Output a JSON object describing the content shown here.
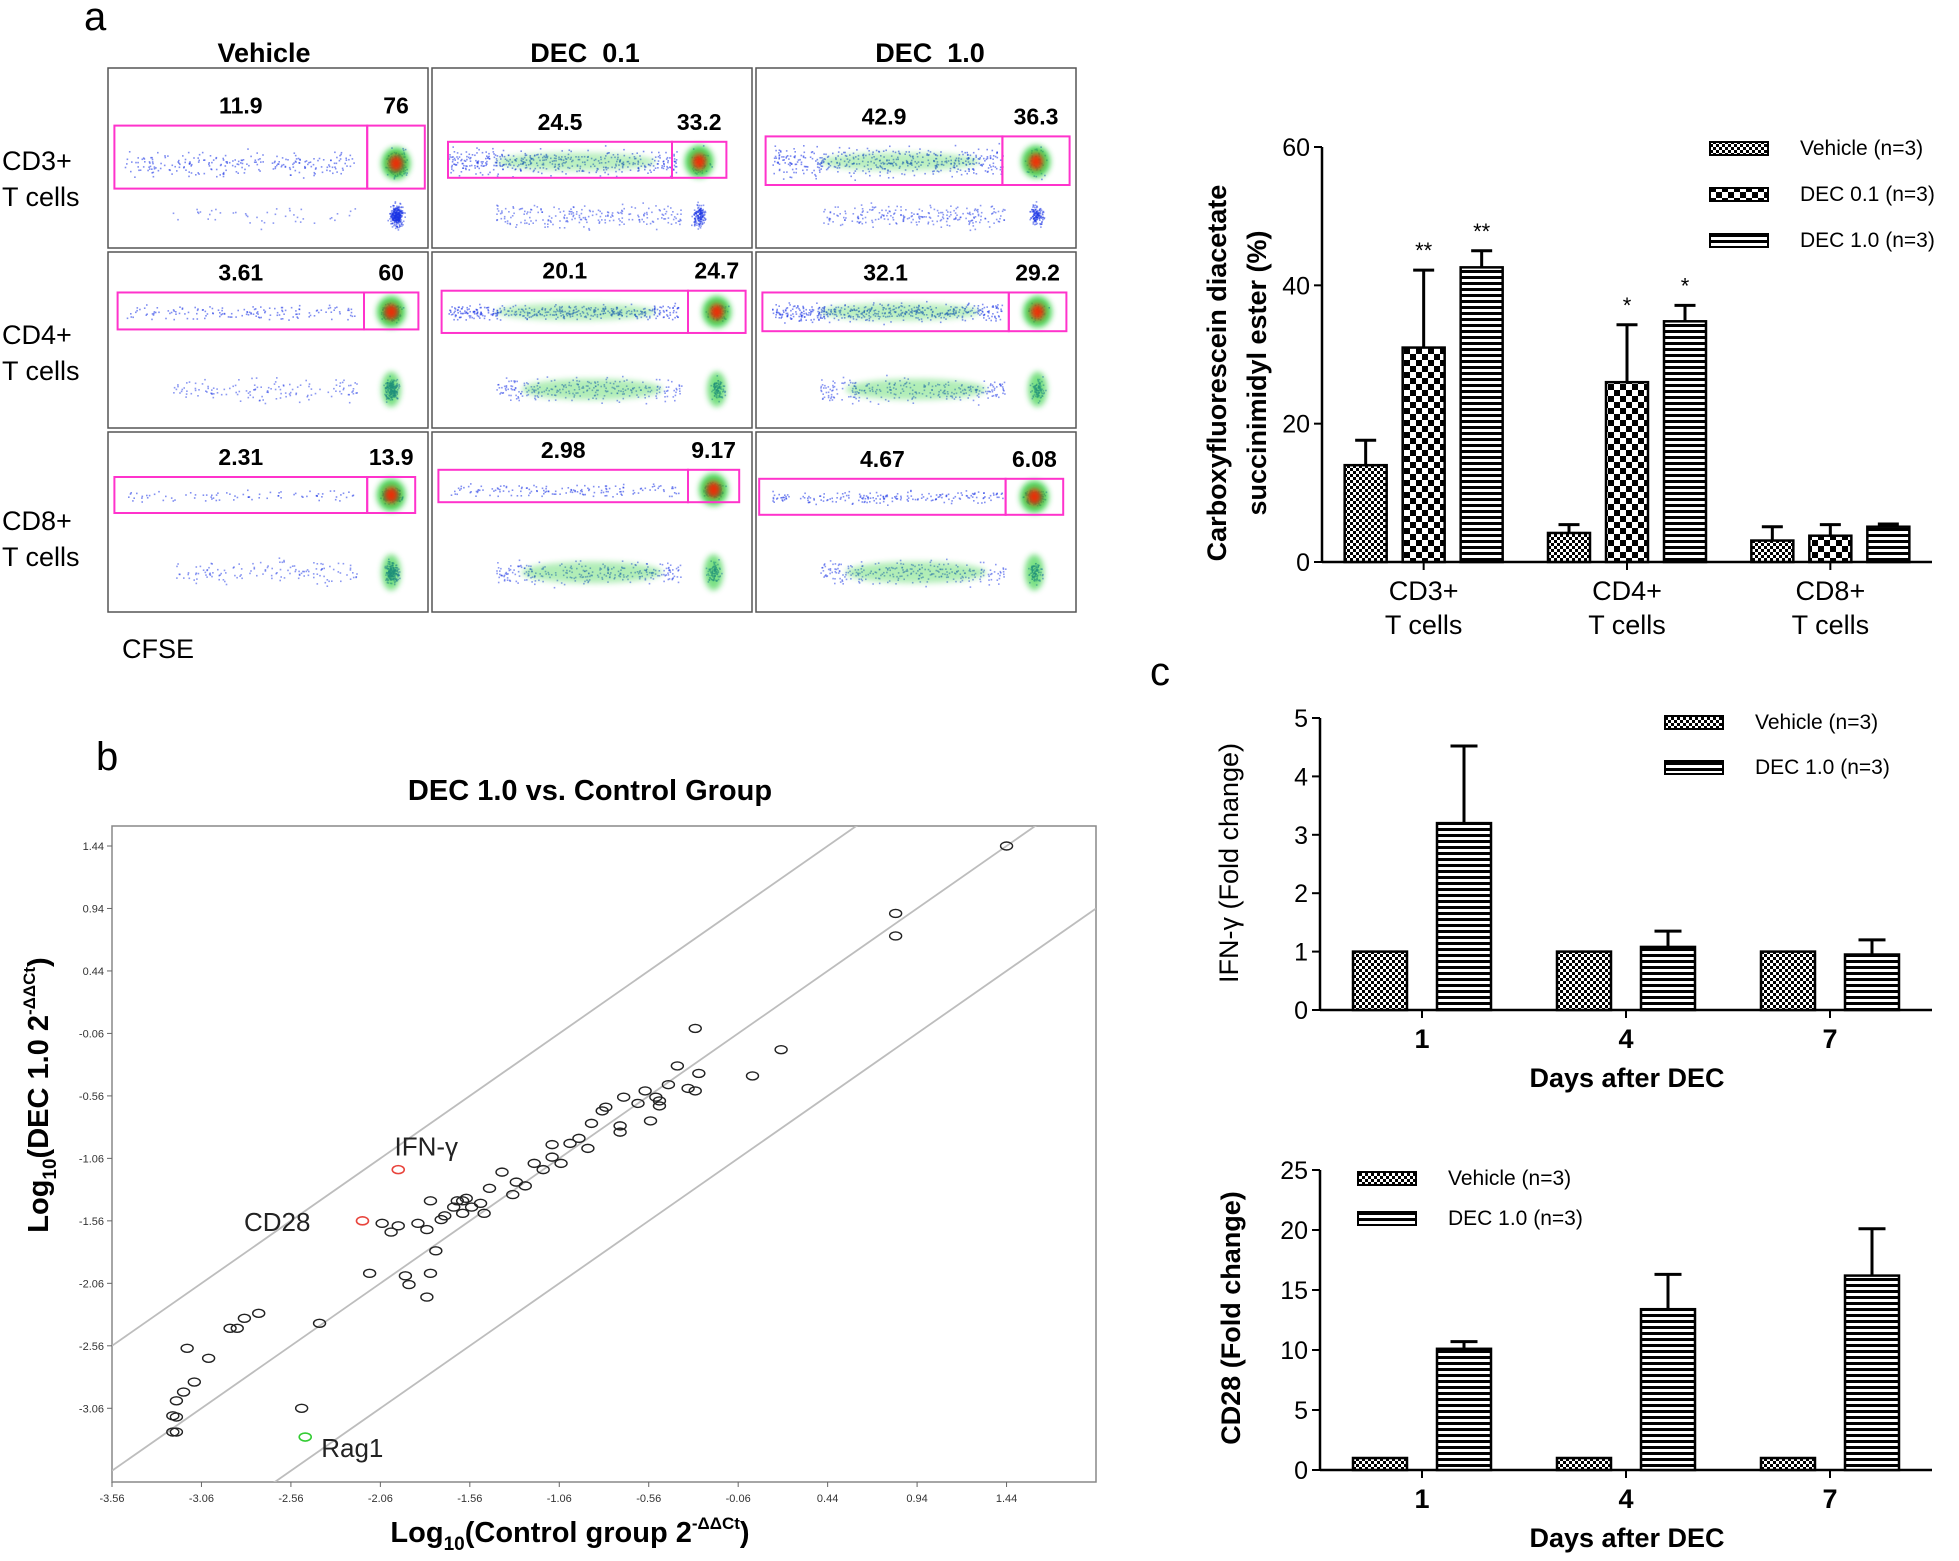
{
  "panel_labels": {
    "a": "a",
    "b": "b",
    "c": "c"
  },
  "flow": {
    "columns": [
      "Vehicle",
      "DEC  0.1",
      "DEC  1.0"
    ],
    "rows": [
      {
        "line1": "CD3+",
        "line2": "T cells"
      },
      {
        "line1": "CD4+",
        "line2": "T cells"
      },
      {
        "line1": "CD8+",
        "line2": "T cells"
      }
    ],
    "gate_values": [
      [
        [
          "11.9",
          "76"
        ],
        [
          "24.5",
          "33.2"
        ],
        [
          "42.9",
          "36.3"
        ]
      ],
      [
        [
          "3.61",
          "60"
        ],
        [
          "20.1",
          "24.7"
        ],
        [
          "32.1",
          "29.2"
        ]
      ],
      [
        [
          "2.31",
          "13.9"
        ],
        [
          "2.98",
          "9.17"
        ],
        [
          "4.67",
          "6.08"
        ]
      ]
    ],
    "x_label": "CFSE",
    "colors": {
      "gate": "#ff33cc",
      "dots": "#1a33e6",
      "hot": "#ff2200",
      "warm": "#22cc33"
    }
  },
  "chart_data": [
    {
      "id": "a-bar",
      "type": "bar",
      "ylabel_line1": "Carboxyfluorescein diacetate",
      "ylabel_line2": "succinimidyl ester (%)",
      "ylim": [
        0,
        60
      ],
      "yticks": [
        "0",
        "20",
        "40",
        "60"
      ],
      "categories": [
        {
          "line1": "CD3+",
          "line2": "T cells"
        },
        {
          "line1": "CD4+",
          "line2": "T cells"
        },
        {
          "line1": "CD8+",
          "line2": "T cells"
        }
      ],
      "series": [
        {
          "name": "Vehicle (n=3)",
          "values": [
            14,
            4.2,
            3.1
          ],
          "errors": [
            3.6,
            1.2,
            2.0
          ],
          "pattern": "checker-small"
        },
        {
          "name": "DEC  0.1 (n=3)",
          "values": [
            31,
            26,
            3.8
          ],
          "errors": [
            11.2,
            8.3,
            1.6
          ],
          "pattern": "checker-large"
        },
        {
          "name": "DEC  1.0 (n=3)",
          "values": [
            42.6,
            34.8,
            5.1
          ],
          "errors": [
            2.4,
            2.3,
            0.4
          ],
          "pattern": "stripes"
        }
      ],
      "significance": [
        [
          "",
          "**",
          "**"
        ],
        [
          "",
          "*",
          "*"
        ],
        [
          "",
          "",
          ""
        ]
      ]
    },
    {
      "id": "b-scatter",
      "type": "scatter",
      "title": "DEC 1.0 vs. Control Group",
      "xlabel_main": "Log",
      "xlabel_sub": "10",
      "xlabel_rest": "(Control group 2",
      "xlabel_sup": "-ΔΔCt",
      "xlabel_end": ")",
      "ylabel_main": "Log",
      "ylabel_sub": "10",
      "ylabel_rest": "(DEC 1.0 2",
      "ylabel_sup": "-ΔΔCt",
      "ylabel_end": ")",
      "xlim": [
        -3.56,
        1.94
      ],
      "ylim": [
        -3.65,
        1.6
      ],
      "xticks": [
        "-3.56",
        "-3.06",
        "-2.56",
        "-2.06",
        "-1.56",
        "-1.06",
        "-0.56",
        "-0.06",
        "0.44",
        "0.94",
        "1.44"
      ],
      "yticks": [
        "-3.06",
        "-2.56",
        "-2.06",
        "-1.56",
        "-1.06",
        "-0.56",
        "-0.06",
        "0.44",
        "0.94",
        "1.44"
      ],
      "diagonal_offsets": [
        1,
        0,
        -1
      ],
      "points": [
        [
          1.44,
          1.44
        ],
        [
          0.82,
          0.9
        ],
        [
          0.82,
          0.72
        ],
        [
          0.18,
          -0.19
        ],
        [
          0.02,
          -0.4
        ],
        [
          -0.3,
          -0.02
        ],
        [
          -0.28,
          -0.38
        ],
        [
          -0.3,
          -0.52
        ],
        [
          -0.34,
          -0.5
        ],
        [
          -0.4,
          -0.32
        ],
        [
          -0.45,
          -0.47
        ],
        [
          -0.5,
          -0.6
        ],
        [
          -0.5,
          -0.64
        ],
        [
          -0.52,
          -0.57
        ],
        [
          -0.58,
          -0.52
        ],
        [
          -0.55,
          -0.76
        ],
        [
          -0.62,
          -0.62
        ],
        [
          -0.7,
          -0.57
        ],
        [
          -0.72,
          -0.8
        ],
        [
          -0.72,
          -0.85
        ],
        [
          -0.8,
          -0.65
        ],
        [
          -0.82,
          -0.68
        ],
        [
          -0.88,
          -0.78
        ],
        [
          -0.95,
          -0.9
        ],
        [
          -0.9,
          -0.98
        ],
        [
          -1.0,
          -0.94
        ],
        [
          -1.1,
          -0.95
        ],
        [
          -1.05,
          -1.1
        ],
        [
          -1.1,
          -1.05
        ],
        [
          -1.15,
          -1.15
        ],
        [
          -1.2,
          -1.1
        ],
        [
          -1.25,
          -1.28
        ],
        [
          -1.3,
          -1.25
        ],
        [
          -1.32,
          -1.35
        ],
        [
          -1.38,
          -1.17
        ],
        [
          -1.45,
          -1.3
        ],
        [
          -1.48,
          -1.5
        ],
        [
          -1.5,
          -1.42
        ],
        [
          -1.55,
          -1.45
        ],
        [
          -1.6,
          -1.5
        ],
        [
          -1.6,
          -1.4
        ],
        [
          -1.65,
          -1.45
        ],
        [
          -1.7,
          -1.52
        ],
        [
          -1.58,
          -1.38
        ],
        [
          -1.63,
          -1.4
        ],
        [
          -1.78,
          -1.4
        ],
        [
          -1.72,
          -1.55
        ],
        [
          -1.75,
          -1.8
        ],
        [
          -1.8,
          -1.63
        ],
        [
          -1.85,
          -1.58
        ],
        [
          -1.78,
          -1.98
        ],
        [
          -1.8,
          -2.17
        ],
        [
          -1.92,
          -2.0
        ],
        [
          -1.9,
          -2.07
        ],
        [
          -1.96,
          -1.6
        ],
        [
          -2.0,
          -1.65
        ],
        [
          -2.05,
          -1.58
        ],
        [
          -2.12,
          -1.98
        ],
        [
          -2.4,
          -2.38
        ],
        [
          -2.74,
          -2.3
        ],
        [
          -2.82,
          -2.34
        ],
        [
          -2.86,
          -2.42
        ],
        [
          -2.9,
          -2.42
        ],
        [
          -3.02,
          -2.66
        ],
        [
          -3.14,
          -2.58
        ],
        [
          -3.1,
          -2.85
        ],
        [
          -3.16,
          -2.93
        ],
        [
          -3.2,
          -3.0
        ],
        [
          -3.2,
          -3.13
        ],
        [
          -3.2,
          -3.25
        ],
        [
          -3.22,
          -3.12
        ],
        [
          -3.22,
          -3.25
        ],
        [
          -2.5,
          -3.06
        ]
      ],
      "highlights": [
        {
          "label": "IFN-γ",
          "x": -1.96,
          "y": -1.15,
          "color": "#e8443c"
        },
        {
          "label": "CD28",
          "x": -2.16,
          "y": -1.56,
          "color": "#e8443c"
        },
        {
          "label": "Rag1",
          "x": -2.48,
          "y": -3.29,
          "color": "#33cc33"
        }
      ]
    },
    {
      "id": "c-ifng",
      "type": "bar",
      "ylabel": "IFN-γ (Fold change)",
      "xlabel": "Days after DEC",
      "ylim": [
        0,
        5
      ],
      "yticks": [
        "0",
        "1",
        "2",
        "3",
        "4",
        "5"
      ],
      "categories": [
        "1",
        "4",
        "7"
      ],
      "series": [
        {
          "name": "Vehicle (n=3)",
          "values": [
            1,
            1,
            1
          ],
          "errors": [
            0,
            0,
            0
          ],
          "pattern": "checker-small"
        },
        {
          "name": "DEC  1.0 (n=3)",
          "values": [
            3.2,
            1.08,
            0.95
          ],
          "errors": [
            1.32,
            0.27,
            0.25
          ],
          "pattern": "stripes"
        }
      ]
    },
    {
      "id": "c-cd28",
      "type": "bar",
      "ylabel": "CD28 (Fold change)",
      "xlabel": "Days after DEC",
      "ylim": [
        0,
        25
      ],
      "yticks": [
        "0",
        "5",
        "10",
        "15",
        "20",
        "25"
      ],
      "categories": [
        "1",
        "4",
        "7"
      ],
      "series": [
        {
          "name": "Vehicle (n=3)",
          "values": [
            1,
            1,
            1
          ],
          "errors": [
            0,
            0,
            0
          ],
          "pattern": "checker-small"
        },
        {
          "name": "DEC  1.0 (n=3)",
          "values": [
            10.1,
            13.4,
            16.2
          ],
          "errors": [
            0.6,
            2.9,
            3.9
          ],
          "pattern": "stripes"
        }
      ]
    }
  ]
}
